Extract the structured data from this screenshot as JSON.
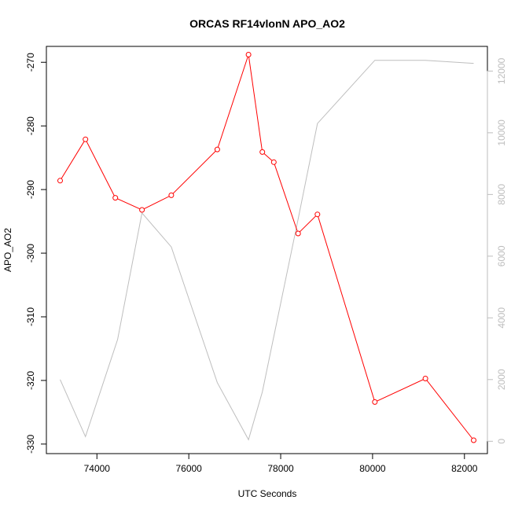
{
  "chart_data": {
    "type": "line",
    "title": "ORCAS RF14vlonN APO_AO2",
    "xlabel": "UTC Seconds",
    "ylabel": "APO_AO2",
    "xlim": [
      72900,
      82500
    ],
    "ylim": [
      -331.5,
      -267.5
    ],
    "y2lim": [
      -400,
      12800
    ],
    "x_ticks": [
      74000,
      76000,
      78000,
      80000,
      82000
    ],
    "x_tick_labels": [
      "74000",
      "76000",
      "78000",
      "80000",
      "82000"
    ],
    "y_ticks": [
      -330,
      -320,
      -310,
      -300,
      -290,
      -280,
      -270
    ],
    "y_tick_labels": [
      "-330",
      "-320",
      "-310",
      "-300",
      "-290",
      "-280",
      "-270"
    ],
    "y2_ticks": [
      0,
      2000,
      4000,
      6000,
      8000,
      10000,
      12000
    ],
    "y2_tick_labels": [
      "0",
      "2000",
      "4000",
      "6000",
      "8000",
      "10000",
      "12000"
    ],
    "grid": false,
    "series": [
      {
        "axis": "left",
        "color": "#ff0000",
        "marker": "open-circle",
        "x": [
          73200,
          73750,
          74400,
          74980,
          75620,
          76620,
          77300,
          77600,
          77850,
          78380,
          78800,
          80050,
          81150,
          82200
        ],
        "y": [
          -288.6,
          -282.1,
          -291.3,
          -293.2,
          -290.9,
          -283.7,
          -268.8,
          -284.1,
          -285.7,
          -296.9,
          -293.9,
          -323.4,
          -319.7,
          -329.4
        ]
      },
      {
        "axis": "right",
        "color": "#bebebe",
        "marker": "none",
        "x": [
          73200,
          73750,
          74450,
          74980,
          75620,
          76620,
          77300,
          77600,
          78380,
          78800,
          80050,
          81150,
          82200
        ],
        "y": [
          2000,
          150,
          3300,
          7400,
          6300,
          1900,
          50,
          1600,
          7200,
          10300,
          12350,
          12350,
          12250
        ]
      }
    ]
  }
}
